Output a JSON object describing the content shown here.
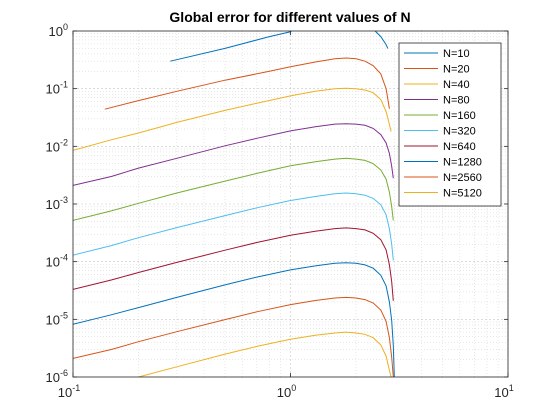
{
  "chart_data": {
    "type": "line",
    "title": "Global error for different values of N",
    "xlabel": "",
    "ylabel": "",
    "xscale": "log",
    "yscale": "log",
    "xlim": [
      0.1,
      10
    ],
    "ylim": [
      1e-06,
      1
    ],
    "grid": true,
    "minor_grid": true,
    "legend_position": "top-right",
    "x_ticks": [
      {
        "value": 0.1,
        "base": "10",
        "exp": "-1"
      },
      {
        "value": 1,
        "base": "10",
        "exp": "0"
      },
      {
        "value": 10,
        "base": "10",
        "exp": "1"
      }
    ],
    "y_ticks": [
      {
        "value": 1e-06,
        "base": "10",
        "exp": "-6"
      },
      {
        "value": 1e-05,
        "base": "10",
        "exp": "-5"
      },
      {
        "value": 0.0001,
        "base": "10",
        "exp": "-4"
      },
      {
        "value": 0.001,
        "base": "10",
        "exp": "-3"
      },
      {
        "value": 0.01,
        "base": "10",
        "exp": "-2"
      },
      {
        "value": 0.1,
        "base": "10",
        "exp": "-1"
      },
      {
        "value": 1,
        "base": "10",
        "exp": "0"
      }
    ],
    "series": [
      {
        "name": "N=10",
        "color": "#0072BD",
        "points": [
          [
            0.28,
            0.3
          ],
          [
            0.5,
            0.5
          ],
          [
            0.8,
            0.8
          ],
          [
            1.0,
            0.97
          ],
          [
            1.01,
            1.0
          ]
        ],
        "tail": [
          [
            2.45,
            1.0
          ],
          [
            2.6,
            0.8
          ],
          [
            2.75,
            0.58
          ],
          [
            2.8,
            0.5
          ]
        ]
      },
      {
        "name": "N=20",
        "color": "#D95319",
        "points": [
          [
            0.14,
            0.044
          ],
          [
            0.2,
            0.062
          ],
          [
            0.3,
            0.09
          ],
          [
            0.5,
            0.14
          ],
          [
            0.8,
            0.2
          ],
          [
            1.0,
            0.24
          ],
          [
            1.3,
            0.29
          ],
          [
            1.6,
            0.33
          ],
          [
            1.8,
            0.34
          ],
          [
            2.0,
            0.33
          ],
          [
            2.2,
            0.3
          ],
          [
            2.4,
            0.25
          ],
          [
            2.6,
            0.18
          ],
          [
            2.75,
            0.1
          ],
          [
            2.85,
            0.045
          ]
        ]
      },
      {
        "name": "N=40",
        "color": "#EDB120",
        "points": [
          [
            0.1,
            0.0085
          ],
          [
            0.15,
            0.013
          ],
          [
            0.2,
            0.017
          ],
          [
            0.3,
            0.026
          ],
          [
            0.5,
            0.042
          ],
          [
            0.7,
            0.056
          ],
          [
            1.0,
            0.075
          ],
          [
            1.3,
            0.09
          ],
          [
            1.6,
            0.1
          ],
          [
            1.8,
            0.102
          ],
          [
            2.0,
            0.1
          ],
          [
            2.2,
            0.095
          ],
          [
            2.4,
            0.085
          ],
          [
            2.6,
            0.065
          ],
          [
            2.75,
            0.04
          ],
          [
            2.85,
            0.024
          ],
          [
            2.9,
            0.018
          ]
        ]
      },
      {
        "name": "N=80",
        "color": "#7E2F8E",
        "points": [
          [
            0.1,
            0.0021
          ],
          [
            0.15,
            0.003
          ],
          [
            0.2,
            0.0042
          ],
          [
            0.3,
            0.0062
          ],
          [
            0.5,
            0.0102
          ],
          [
            0.7,
            0.0138
          ],
          [
            1.0,
            0.0185
          ],
          [
            1.3,
            0.0218
          ],
          [
            1.6,
            0.0243
          ],
          [
            1.8,
            0.0247
          ],
          [
            2.0,
            0.0243
          ],
          [
            2.2,
            0.0232
          ],
          [
            2.4,
            0.0205
          ],
          [
            2.6,
            0.016
          ],
          [
            2.75,
            0.0115
          ],
          [
            2.85,
            0.0075
          ],
          [
            2.92,
            0.0045
          ],
          [
            2.97,
            0.0028
          ]
        ]
      },
      {
        "name": "N=160",
        "color": "#77AC30",
        "points": [
          [
            0.1,
            0.00052
          ],
          [
            0.15,
            0.00076
          ],
          [
            0.2,
            0.00103
          ],
          [
            0.3,
            0.00155
          ],
          [
            0.5,
            0.0025
          ],
          [
            0.7,
            0.0034
          ],
          [
            1.0,
            0.0046
          ],
          [
            1.3,
            0.0054
          ],
          [
            1.6,
            0.006
          ],
          [
            1.8,
            0.0062
          ],
          [
            2.0,
            0.006
          ],
          [
            2.2,
            0.0057
          ],
          [
            2.4,
            0.005
          ],
          [
            2.6,
            0.0039
          ],
          [
            2.75,
            0.0027
          ],
          [
            2.85,
            0.0016
          ],
          [
            2.92,
            0.0009
          ],
          [
            2.97,
            0.00052
          ]
        ]
      },
      {
        "name": "N=320",
        "color": "#4DBEEE",
        "points": [
          [
            0.1,
            0.00013
          ],
          [
            0.15,
            0.00019
          ],
          [
            0.2,
            0.00026
          ],
          [
            0.3,
            0.00039
          ],
          [
            0.5,
            0.00063
          ],
          [
            0.7,
            0.00086
          ],
          [
            1.0,
            0.00115
          ],
          [
            1.3,
            0.00135
          ],
          [
            1.6,
            0.0015
          ],
          [
            1.8,
            0.00155
          ],
          [
            2.0,
            0.0015
          ],
          [
            2.2,
            0.00142
          ],
          [
            2.4,
            0.00125
          ],
          [
            2.6,
            0.00097
          ],
          [
            2.75,
            0.00065
          ],
          [
            2.85,
            0.00037
          ],
          [
            2.92,
            0.0002
          ],
          [
            2.97,
            0.000105
          ]
        ]
      },
      {
        "name": "N=640",
        "color": "#A2142F",
        "points": [
          [
            0.1,
            3.3e-05
          ],
          [
            0.15,
            4.8e-05
          ],
          [
            0.2,
            6.5e-05
          ],
          [
            0.3,
            9.7e-05
          ],
          [
            0.5,
            0.000158
          ],
          [
            0.7,
            0.000215
          ],
          [
            1.0,
            0.000288
          ],
          [
            1.3,
            0.000338
          ],
          [
            1.6,
            0.000375
          ],
          [
            1.8,
            0.000385
          ],
          [
            2.0,
            0.000375
          ],
          [
            2.2,
            0.000355
          ],
          [
            2.4,
            0.00031
          ],
          [
            2.6,
            0.00024
          ],
          [
            2.75,
            0.00016
          ],
          [
            2.85,
            8.8e-05
          ],
          [
            2.92,
            4.5e-05
          ],
          [
            2.97,
            2.1e-05
          ]
        ]
      },
      {
        "name": "N=1280",
        "color": "#0072BD",
        "points": [
          [
            0.1,
            8.2e-06
          ],
          [
            0.15,
            1.2e-05
          ],
          [
            0.2,
            1.6e-05
          ],
          [
            0.3,
            2.4e-05
          ],
          [
            0.5,
            3.95e-05
          ],
          [
            0.7,
            5.4e-05
          ],
          [
            1.0,
            7.2e-05
          ],
          [
            1.3,
            8.45e-05
          ],
          [
            1.6,
            9.35e-05
          ],
          [
            1.8,
            9.6e-05
          ],
          [
            2.0,
            9.35e-05
          ],
          [
            2.2,
            8.8e-05
          ],
          [
            2.4,
            7.7e-05
          ],
          [
            2.6,
            5.8e-05
          ],
          [
            2.75,
            3.8e-05
          ],
          [
            2.85,
            2e-05
          ],
          [
            2.92,
            9.5e-06
          ],
          [
            2.97,
            3.5e-06
          ],
          [
            3.0,
            1e-06
          ]
        ]
      },
      {
        "name": "N=2560",
        "color": "#D95319",
        "points": [
          [
            0.1,
            2.1e-06
          ],
          [
            0.15,
            3e-06
          ],
          [
            0.2,
            4.1e-06
          ],
          [
            0.3,
            6.1e-06
          ],
          [
            0.5,
            9.9e-06
          ],
          [
            0.7,
            1.35e-05
          ],
          [
            1.0,
            1.8e-05
          ],
          [
            1.3,
            2.12e-05
          ],
          [
            1.6,
            2.34e-05
          ],
          [
            1.8,
            2.4e-05
          ],
          [
            2.0,
            2.34e-05
          ],
          [
            2.2,
            2.2e-05
          ],
          [
            2.4,
            1.92e-05
          ],
          [
            2.6,
            1.45e-05
          ],
          [
            2.75,
            9.2e-06
          ],
          [
            2.85,
            4.8e-06
          ],
          [
            2.92,
            2.2e-06
          ],
          [
            2.97,
            1e-06
          ]
        ]
      },
      {
        "name": "N=5120",
        "color": "#EDB120",
        "points": [
          [
            0.2,
            1e-06
          ],
          [
            0.3,
            1.5e-06
          ],
          [
            0.5,
            2.5e-06
          ],
          [
            0.7,
            3.4e-06
          ],
          [
            1.0,
            4.5e-06
          ],
          [
            1.3,
            5.3e-06
          ],
          [
            1.6,
            5.8e-06
          ],
          [
            1.8,
            6e-06
          ],
          [
            2.0,
            5.8e-06
          ],
          [
            2.2,
            5.5e-06
          ],
          [
            2.4,
            4.8e-06
          ],
          [
            2.6,
            3.6e-06
          ],
          [
            2.75,
            2.3e-06
          ],
          [
            2.85,
            1.3e-06
          ],
          [
            2.9,
            1e-06
          ]
        ]
      }
    ]
  }
}
